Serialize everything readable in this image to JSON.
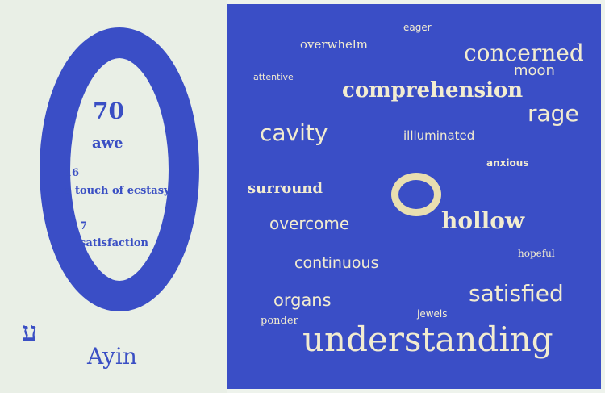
{
  "left": {
    "number_main": "70",
    "word_main": "awe",
    "number_2": "16",
    "word_2": "a touch of ecstasy",
    "number_3": "7",
    "word_3": "satisfaction",
    "hebrew_letter": "ע",
    "letter_name": "Ayin"
  },
  "cloud": {
    "words": {
      "eager": "eager",
      "overwhelm": "overwhelm",
      "concerned": "concerned",
      "attentive": "attentive",
      "moon": "moon",
      "comprehension": "comprehension",
      "rage": "rage",
      "cavity": "cavity",
      "illuminated": "illluminated",
      "anxious": "anxious",
      "surround": "surround",
      "hollow": "hollow",
      "overcome": "overcome",
      "hopeful": "hopeful",
      "continuous": "continuous",
      "satisfied": "satisfied",
      "organs": "organs",
      "jewels": "jewels",
      "ponder": "ponder",
      "understanding": "understanding"
    }
  },
  "colors": {
    "ring": "#3a4ec6",
    "left_text": "#3a4fc4",
    "cloud_bg": "#3a4ec6",
    "cloud_text": "#f2ecd0"
  }
}
